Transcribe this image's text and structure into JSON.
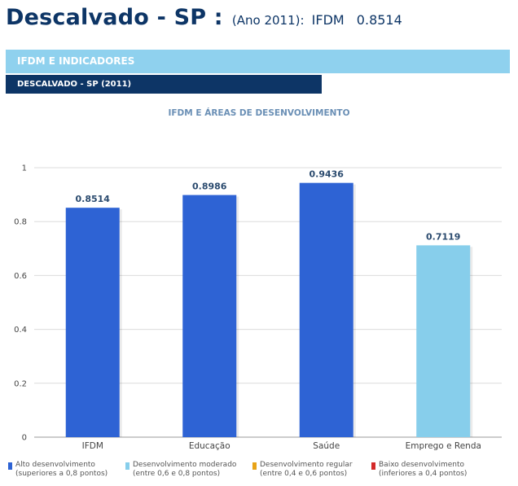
{
  "header": {
    "city": "Descalvado - SP :",
    "year_label": "(Ano 2011):",
    "ifdm_label": "IFDM",
    "ifdm_value": "0.8514"
  },
  "section": {
    "title": "IFDM E INDICADORES",
    "subtitle": "DESCALVADO - SP (2011)"
  },
  "chart_data": {
    "type": "bar",
    "title": "IFDM E ÁREAS DE DESENVOLVIMENTO",
    "categories": [
      "IFDM",
      "Educação",
      "Saúde",
      "Emprego e Renda"
    ],
    "values": [
      0.8514,
      0.8986,
      0.9436,
      0.7119
    ],
    "value_labels": [
      "0.8514",
      "0.8986",
      "0.9436",
      "0.7119"
    ],
    "bar_colors": [
      "#2e63d4",
      "#2e63d4",
      "#2e63d4",
      "#87ceeb"
    ],
    "yticks": [
      "0",
      "0.2",
      "0.4",
      "0.6",
      "0.8",
      "1"
    ],
    "ylim": [
      0,
      1
    ],
    "grid": true,
    "xlabel": "",
    "ylabel": ""
  },
  "legend": [
    {
      "line1": "Alto desenvolvimento",
      "line2": "(superiores a 0,8 pontos)",
      "color": "#2e63d4"
    },
    {
      "line1": "Desenvolvimento moderado",
      "line2": "(entre 0,6 e 0,8 pontos)",
      "color": "#87ceeb"
    },
    {
      "line1": "Desenvolvimento regular",
      "line2": "(entre 0,4 e 0,6 pontos)",
      "color": "#e8a317"
    },
    {
      "line1": "Baixo desenvolvimento",
      "line2": "(inferiores a 0,4 pontos)",
      "color": "#d42a2a"
    }
  ],
  "colors": {
    "navy": "#0d3566",
    "light_blue_banner": "#8fd1ee",
    "chart_title": "#6a8fb5"
  }
}
